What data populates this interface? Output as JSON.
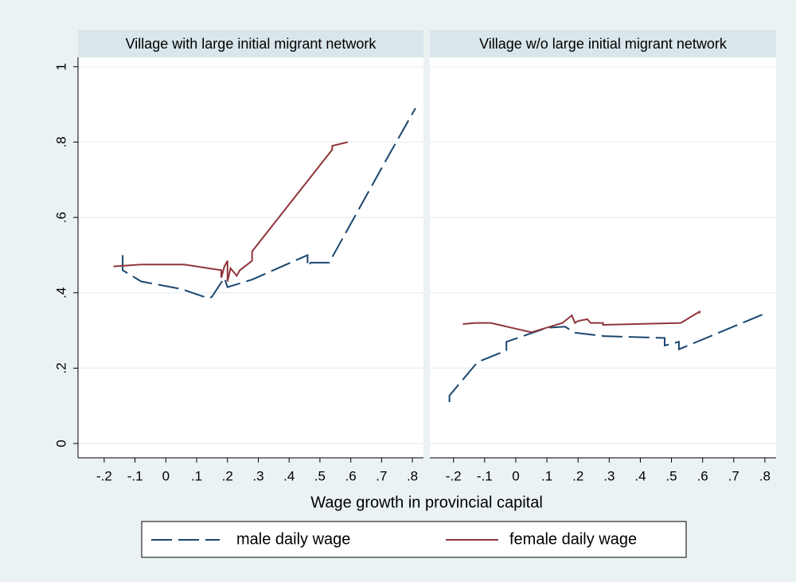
{
  "chart_data": [
    {
      "type": "line",
      "title": "Village with large initial migrant network",
      "xlim": [
        -0.285,
        0.836
      ],
      "ylim": [
        -0.038,
        1.025
      ],
      "xticks": [
        {
          "value": -0.2,
          "label": "-.2"
        },
        {
          "value": -0.1,
          "label": "-.1"
        },
        0,
        {
          "value": 0.1,
          "label": ".1"
        },
        {
          "value": 0.2,
          "label": ".2"
        },
        {
          "value": 0.3,
          "label": ".3"
        },
        {
          "value": 0.4,
          "label": ".4"
        },
        {
          "value": 0.5,
          "label": ".5"
        },
        {
          "value": 0.6,
          "label": ".6"
        },
        {
          "value": 0.7,
          "label": ".7"
        },
        {
          "value": 0.8,
          "label": ".8"
        }
      ],
      "yticks": [
        0,
        {
          "value": 0.2,
          "label": ".2"
        },
        {
          "value": 0.4,
          "label": ".4"
        },
        {
          "value": 0.6,
          "label": ".6"
        },
        {
          "value": 0.8,
          "label": ".8"
        },
        1
      ],
      "grid": true,
      "series": [
        {
          "name": "male daily wage",
          "color": "#1a476f",
          "dash": true,
          "x": [
            -0.14,
            -0.14,
            -0.08,
            0.05,
            0.14,
            0.15,
            0.19,
            0.2,
            0.28,
            0.46,
            0.46,
            0.47,
            0.53,
            0.72,
            0.81
          ],
          "values": [
            0.5,
            0.46,
            0.43,
            0.41,
            0.385,
            0.39,
            0.44,
            0.415,
            0.435,
            0.5,
            0.47,
            0.48,
            0.48,
            0.76,
            0.89
          ]
        },
        {
          "name": "female daily wage",
          "color": "#90353b",
          "dash": false,
          "x": [
            -0.17,
            -0.08,
            0.06,
            0.18,
            0.18,
            0.19,
            0.2,
            0.2,
            0.21,
            0.23,
            0.24,
            0.28,
            0.28,
            0.54,
            0.54,
            0.59
          ],
          "values": [
            0.47,
            0.475,
            0.475,
            0.46,
            0.44,
            0.47,
            0.485,
            0.43,
            0.465,
            0.445,
            0.46,
            0.485,
            0.51,
            0.78,
            0.79,
            0.8
          ]
        }
      ]
    },
    {
      "type": "line",
      "title": "Village w/o large initial migrant network",
      "xlim": [
        -0.276,
        0.836
      ],
      "ylim": [
        -0.038,
        1.025
      ],
      "xticks": [
        {
          "value": -0.2,
          "label": "-.2"
        },
        {
          "value": -0.1,
          "label": "-.1"
        },
        0,
        {
          "value": 0.1,
          "label": ".1"
        },
        {
          "value": 0.2,
          "label": ".2"
        },
        {
          "value": 0.3,
          "label": ".3"
        },
        {
          "value": 0.4,
          "label": ".4"
        },
        {
          "value": 0.5,
          "label": ".5"
        },
        {
          "value": 0.6,
          "label": ".6"
        },
        {
          "value": 0.7,
          "label": ".7"
        },
        {
          "value": 0.8,
          "label": ".8"
        }
      ],
      "yticks": [
        0,
        0.2,
        0.4,
        0.6,
        0.8,
        1
      ],
      "grid": true,
      "series": [
        {
          "name": "male daily wage",
          "color": "#1a476f",
          "dash": true,
          "x": [
            -0.213,
            -0.213,
            -0.123,
            -0.03,
            -0.03,
            0.1,
            0.158,
            0.19,
            0.286,
            0.478,
            0.478,
            0.524,
            0.524,
            0.8
          ],
          "values": [
            0.11,
            0.127,
            0.216,
            0.247,
            0.27,
            0.307,
            0.31,
            0.294,
            0.285,
            0.28,
            0.26,
            0.27,
            0.25,
            0.345
          ]
        },
        {
          "name": "female daily wage",
          "color": "#90353b",
          "dash": false,
          "x": [
            -0.17,
            -0.13,
            -0.08,
            0.05,
            0.15,
            0.18,
            0.19,
            0.2,
            0.23,
            0.24,
            0.28,
            0.28,
            0.53,
            0.59,
            0.59
          ],
          "values": [
            0.317,
            0.32,
            0.32,
            0.295,
            0.32,
            0.34,
            0.32,
            0.325,
            0.33,
            0.32,
            0.32,
            0.315,
            0.32,
            0.35,
            0.345
          ]
        }
      ]
    }
  ],
  "x_label": "Wage growth in provincial capital"
}
